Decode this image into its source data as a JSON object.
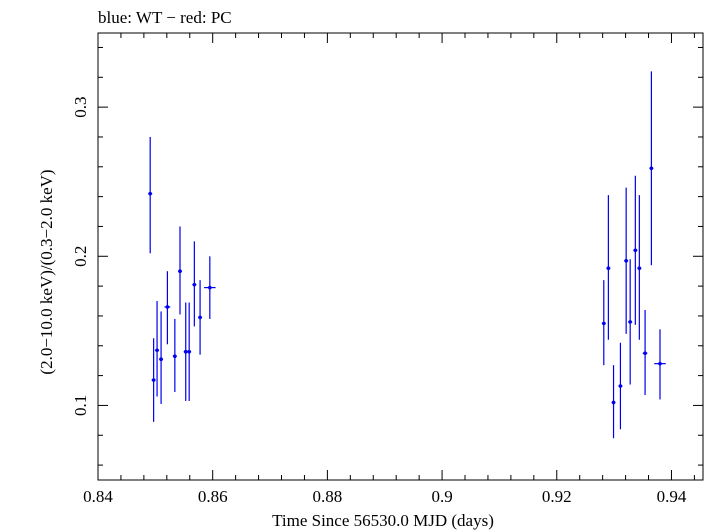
{
  "chart_data": {
    "type": "scatter",
    "title": "blue: WT − red: PC",
    "xlabel": "Time Since 56530.0 MJD (days)",
    "ylabel": "(2.0−10.0 keV)/(0.3−2.0 keV)",
    "xlim": [
      0.84,
      0.9455
    ],
    "ylim": [
      0.05,
      0.3497
    ],
    "xticks": [
      0.84,
      0.86,
      0.88,
      0.9,
      0.92,
      0.94
    ],
    "xtick_labels": [
      "0.84",
      "0.86",
      "0.88",
      "0.9",
      "0.92",
      "0.94"
    ],
    "yticks": [
      0.1,
      0.2,
      0.3
    ],
    "ytick_labels": [
      "0.1",
      "0.2",
      "0.3"
    ],
    "grid": false,
    "series": [
      {
        "color": "#0000ee",
        "points": [
          {
            "x": 0.8491,
            "y": 0.242,
            "xerr": 0.0002,
            "ylo": 0.202,
            "yhi": 0.28
          },
          {
            "x": 0.8497,
            "y": 0.117,
            "xerr": 0.0002,
            "ylo": 0.089,
            "yhi": 0.145
          },
          {
            "x": 0.8503,
            "y": 0.137,
            "xerr": 0.0002,
            "ylo": 0.106,
            "yhi": 0.17
          },
          {
            "x": 0.851,
            "y": 0.131,
            "xerr": 0.0002,
            "ylo": 0.101,
            "yhi": 0.163
          },
          {
            "x": 0.8521,
            "y": 0.166,
            "xerr": 0.0005,
            "ylo": 0.141,
            "yhi": 0.19
          },
          {
            "x": 0.8534,
            "y": 0.133,
            "xerr": 0.0003,
            "ylo": 0.109,
            "yhi": 0.158
          },
          {
            "x": 0.8543,
            "y": 0.19,
            "xerr": 0.0003,
            "ylo": 0.161,
            "yhi": 0.22
          },
          {
            "x": 0.8553,
            "y": 0.136,
            "xerr": 0.0002,
            "ylo": 0.103,
            "yhi": 0.169
          },
          {
            "x": 0.8559,
            "y": 0.136,
            "xerr": 0.0002,
            "ylo": 0.103,
            "yhi": 0.169
          },
          {
            "x": 0.8568,
            "y": 0.181,
            "xerr": 0.0002,
            "ylo": 0.153,
            "yhi": 0.21
          },
          {
            "x": 0.8578,
            "y": 0.159,
            "xerr": 0.0003,
            "ylo": 0.134,
            "yhi": 0.184
          },
          {
            "x": 0.8595,
            "y": 0.179,
            "xerr": 0.001,
            "ylo": 0.158,
            "yhi": 0.2
          },
          {
            "x": 0.9282,
            "y": 0.155,
            "xerr": 0.0002,
            "ylo": 0.127,
            "yhi": 0.184
          },
          {
            "x": 0.929,
            "y": 0.192,
            "xerr": 0.0002,
            "ylo": 0.144,
            "yhi": 0.241
          },
          {
            "x": 0.9299,
            "y": 0.102,
            "xerr": 0.0003,
            "ylo": 0.078,
            "yhi": 0.127
          },
          {
            "x": 0.9311,
            "y": 0.113,
            "xerr": 0.0003,
            "ylo": 0.084,
            "yhi": 0.142
          },
          {
            "x": 0.9321,
            "y": 0.197,
            "xerr": 0.0002,
            "ylo": 0.148,
            "yhi": 0.246
          },
          {
            "x": 0.9328,
            "y": 0.156,
            "xerr": 0.0002,
            "ylo": 0.114,
            "yhi": 0.198
          },
          {
            "x": 0.9337,
            "y": 0.204,
            "xerr": 0.0003,
            "ylo": 0.154,
            "yhi": 0.254
          },
          {
            "x": 0.9344,
            "y": 0.192,
            "xerr": 0.0002,
            "ylo": 0.144,
            "yhi": 0.241
          },
          {
            "x": 0.9354,
            "y": 0.135,
            "xerr": 0.0004,
            "ylo": 0.107,
            "yhi": 0.164
          },
          {
            "x": 0.9365,
            "y": 0.259,
            "xerr": 0.0002,
            "ylo": 0.194,
            "yhi": 0.324
          },
          {
            "x": 0.938,
            "y": 0.128,
            "xerr": 0.001,
            "ylo": 0.104,
            "yhi": 0.151
          }
        ]
      }
    ]
  }
}
